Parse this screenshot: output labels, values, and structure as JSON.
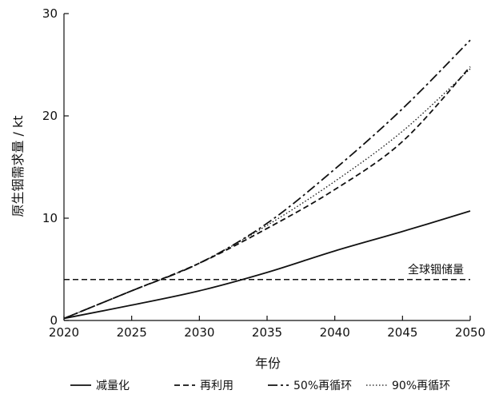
{
  "chart_data": {
    "type": "line",
    "title": "",
    "xlabel": "年份",
    "ylabel": "原生铟需求量 / kt",
    "xlim": [
      2020,
      2050
    ],
    "ylim": [
      0,
      30
    ],
    "xticks": [
      2020,
      2025,
      2030,
      2035,
      2040,
      2045,
      2050
    ],
    "yticks": [
      0,
      10,
      20,
      30
    ],
    "grid": false,
    "legend_position": "bottom",
    "series": [
      {
        "name": "减量化",
        "style": "solid",
        "x": [
          2020,
          2025,
          2030,
          2035,
          2040,
          2045,
          2050
        ],
        "y": [
          0.2,
          1.5,
          2.9,
          4.7,
          6.8,
          8.7,
          10.7
        ]
      },
      {
        "name": "再利用",
        "style": "dashed",
        "x": [
          2020,
          2025,
          2030,
          2035,
          2040,
          2045,
          2050
        ],
        "y": [
          0.2,
          2.9,
          5.6,
          9.0,
          12.8,
          17.5,
          24.8
        ]
      },
      {
        "name": "50%再循环",
        "style": "dashdot",
        "x": [
          2020,
          2025,
          2030,
          2035,
          2040,
          2045,
          2050
        ],
        "y": [
          0.2,
          2.9,
          5.6,
          9.5,
          14.8,
          20.7,
          27.4
        ]
      },
      {
        "name": "90%再循环",
        "style": "dotted",
        "x": [
          2020,
          2025,
          2030,
          2035,
          2040,
          2045,
          2050
        ],
        "y": [
          0.2,
          2.9,
          5.6,
          9.3,
          13.6,
          18.5,
          24.6
        ]
      }
    ],
    "reference_line": {
      "label": "全球铟储量",
      "y": 4.0,
      "style": "dashed"
    }
  }
}
